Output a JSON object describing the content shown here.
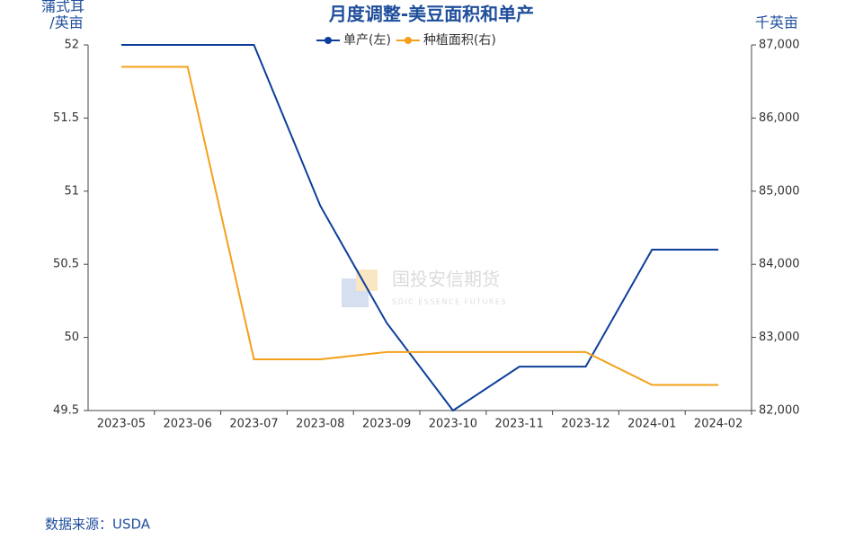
{
  "chart_data": {
    "type": "line",
    "title": "月度调整-美豆面积和单产",
    "ylabel": [
      "蒲式耳",
      "/英亩"
    ],
    "y2label": "千英亩",
    "source": "数据来源：USDA",
    "watermark": [
      "国投安信期货",
      "SDIC ESSENCE FUTURES"
    ],
    "categories": [
      "2023-05",
      "2023-06",
      "2023-07",
      "2023-08",
      "2023-09",
      "2023-10",
      "2023-11",
      "2023-12",
      "2024-01",
      "2024-02"
    ],
    "series": [
      {
        "name": "单产(左)",
        "color": "#0d3f9a",
        "values": [
          52,
          52,
          52,
          50.9,
          50.1,
          49.5,
          49.8,
          49.8,
          50.6,
          50.6
        ]
      },
      {
        "name": "种植面积(右)",
        "color": "#f5a01a",
        "axis": "y2",
        "values": [
          86700,
          86700,
          82700,
          82700,
          82800,
          82800,
          82800,
          82800,
          82350,
          82350
        ]
      }
    ],
    "ylim": [
      49.5,
      52
    ],
    "yticks": [
      49.5,
      50,
      50.5,
      51,
      51.5,
      52
    ],
    "y2lim": [
      82000,
      87000
    ],
    "y2ticks": [
      {
        "value": 82000,
        "label": "82,000"
      },
      {
        "value": 83000,
        "label": "83,000"
      },
      {
        "value": 84000,
        "label": "84,000"
      },
      {
        "value": 85000,
        "label": "85,000"
      },
      {
        "value": 86000,
        "label": "86,000"
      },
      {
        "value": 87000,
        "label": "87,000"
      }
    ],
    "grid": false
  }
}
